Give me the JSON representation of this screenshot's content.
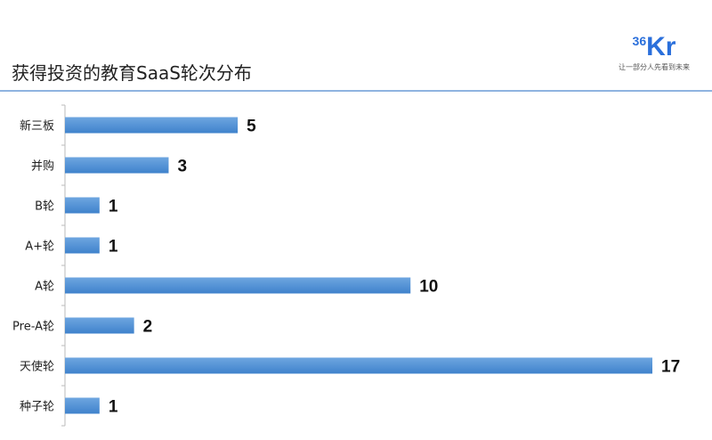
{
  "header": {
    "title": "获得投资的教育SaaS轮次分布"
  },
  "logo": {
    "mark_small": "36",
    "mark_big": "Kr",
    "tagline": "让一部分人先看到未来"
  },
  "chart_data": {
    "type": "bar",
    "orientation": "horizontal",
    "title": "获得投资的教育SaaS轮次分布",
    "categories": [
      "新三板",
      "并购",
      "B轮",
      "A+轮",
      "A轮",
      "Pre-A轮",
      "天使轮",
      "种子轮"
    ],
    "values": [
      5,
      3,
      1,
      1,
      10,
      2,
      17,
      1
    ],
    "xlim": [
      0,
      17
    ],
    "grid": false,
    "data_labels": true,
    "bar_color": "#4a8bd0"
  }
}
